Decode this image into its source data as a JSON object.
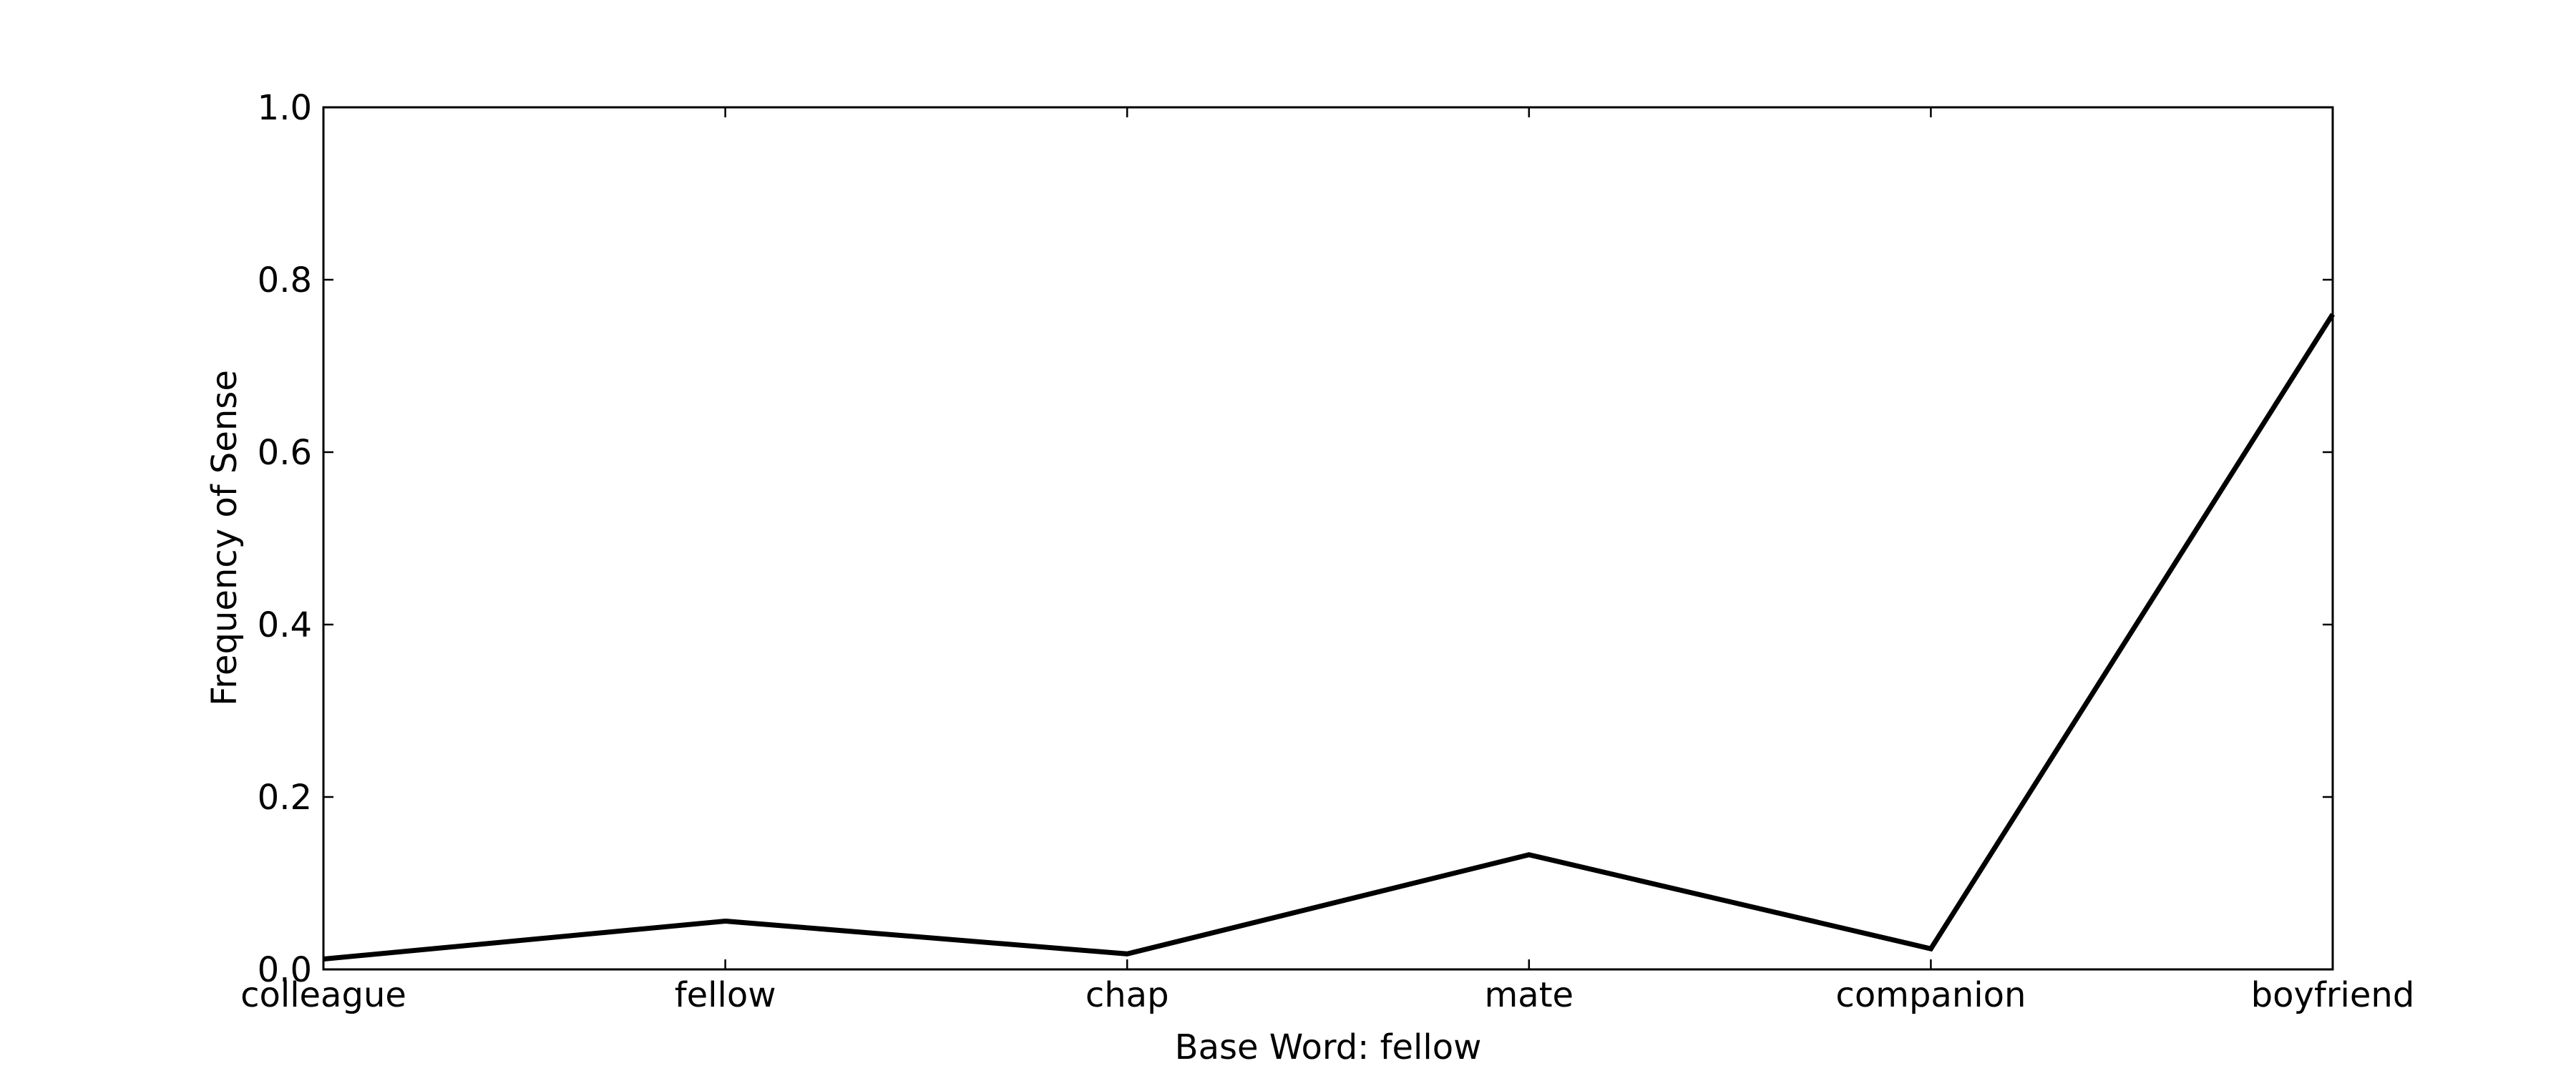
{
  "chart_data": {
    "type": "line",
    "title": "",
    "xlabel": "Base Word: fellow",
    "ylabel": "Frequency of Sense",
    "categories": [
      "colleague",
      "fellow",
      "chap",
      "mate",
      "companion",
      "boyfriend"
    ],
    "series": [
      {
        "values": [
          0.012,
          0.056,
          0.018,
          0.133,
          0.024,
          0.76
        ],
        "color": "#000000"
      }
    ],
    "ylim": [
      0.0,
      1.0
    ],
    "yticks": [
      "0.0",
      "0.2",
      "0.4",
      "0.6",
      "0.8",
      "1.0"
    ],
    "grid": false,
    "legend": "none"
  }
}
